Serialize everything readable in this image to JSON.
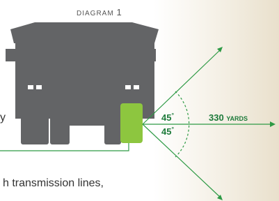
{
  "header": {
    "label": "DIAGRAM",
    "number": "1"
  },
  "angles": [
    {
      "value": "45",
      "unit": "°"
    },
    {
      "value": "45",
      "unit": "°"
    }
  ],
  "distance": {
    "value": "330",
    "unit": "YARDS"
  },
  "text_fragments": [
    "y",
    "h transmission lines,"
  ]
}
